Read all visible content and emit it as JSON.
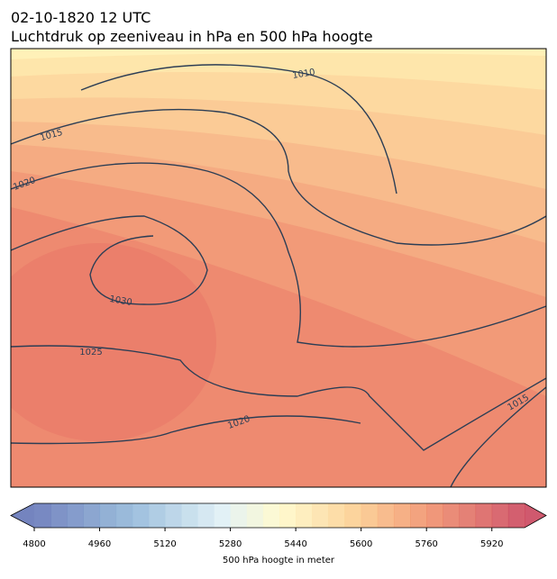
{
  "header": {
    "date": "02-10-1820 12 UTC",
    "title": "Luchtdruk op zeeniveau in hPa en 500 hPa hoogte"
  },
  "map": {
    "contour_labels": [
      "1010",
      "1015",
      "1020",
      "1030",
      "1025",
      "1020",
      "1015"
    ]
  },
  "colorbar": {
    "range": [
      4800,
      6000
    ],
    "ticks": [
      4800,
      4960,
      5120,
      5280,
      5440,
      5600,
      5760,
      5920
    ],
    "label": "500 hPa hoogte in meter"
  }
}
